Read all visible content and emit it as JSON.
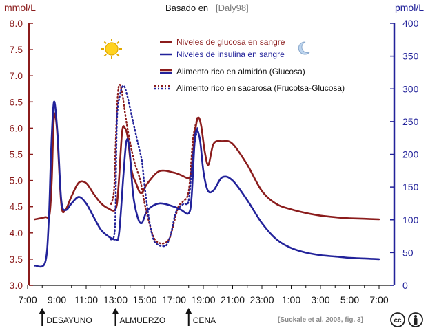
{
  "chart_data": {
    "type": "line",
    "title": "Basado en",
    "title_source": "[Daly98]",
    "y_left": {
      "unit": "mmol/L",
      "range": [
        3.0,
        8.0
      ],
      "ticks": [
        "3.0",
        "3.5",
        "4.0",
        "4.5",
        "5.0",
        "5.5",
        "6.0",
        "6.5",
        "7.0",
        "7.5",
        "8.0"
      ]
    },
    "y_right": {
      "unit": "pmol/L",
      "range": [
        0,
        400
      ],
      "ticks": [
        "0",
        "50",
        "100",
        "150",
        "200",
        "250",
        "300",
        "350",
        "400"
      ]
    },
    "x_ticks": [
      "7:00",
      "9:00",
      "11:00",
      "13:00",
      "15:00",
      "17:00",
      "19:00",
      "21:00",
      "23:00",
      "1:00",
      "3:00",
      "5:00",
      "7:00"
    ],
    "x_range": [
      7,
      31.5
    ],
    "legend": [
      {
        "label": "Niveles de glucosa en sangre",
        "color": "#8b1c1c",
        "style": "solid",
        "group": "measure"
      },
      {
        "label": "Niveles de insulina en sangre",
        "color": "#22229a",
        "style": "solid",
        "group": "measure"
      },
      {
        "label": "Alimento rico en almidón (Glucosa)",
        "style": "solid",
        "group": "food"
      },
      {
        "label": "Alimento rico en sacarosa (Frucotsa-Glucosa)",
        "style": "dotted",
        "group": "food"
      }
    ],
    "series": [
      {
        "measure": "glucose",
        "food": "starch",
        "axis": "left",
        "color": "#8b1c1c",
        "style": "solid",
        "x": [
          7.5,
          8.2,
          8.5,
          8.65,
          8.8,
          9.0,
          9.3,
          9.6,
          10,
          10.5,
          11,
          11.5,
          12,
          12.5,
          13,
          13.2,
          13.45,
          13.65,
          13.85,
          14.1,
          14.4,
          14.75,
          15.2,
          16,
          17,
          17.5,
          18,
          18.2,
          18.45,
          18.65,
          18.85,
          19.1,
          19.35,
          19.7,
          20.3,
          21,
          22,
          23,
          24,
          25,
          26,
          27,
          28,
          29,
          30,
          31
        ],
        "y": [
          4.26,
          4.3,
          4.35,
          5.0,
          6.2,
          6.0,
          4.55,
          4.45,
          4.7,
          4.96,
          4.95,
          4.75,
          4.57,
          4.47,
          4.45,
          4.85,
          5.92,
          6.0,
          5.8,
          5.2,
          4.95,
          4.76,
          4.95,
          5.18,
          5.15,
          5.1,
          5.05,
          5.2,
          5.95,
          6.2,
          6.05,
          5.55,
          5.3,
          5.7,
          5.75,
          5.7,
          5.3,
          4.8,
          4.55,
          4.45,
          4.38,
          4.33,
          4.3,
          4.28,
          4.27,
          4.26
        ]
      },
      {
        "measure": "insulin",
        "food": "starch",
        "axis": "right",
        "color": "#22229a",
        "style": "solid",
        "x": [
          7.5,
          8.2,
          8.45,
          8.6,
          8.8,
          9.05,
          9.3,
          9.6,
          10,
          10.5,
          11,
          11.5,
          12,
          12.5,
          13,
          13.25,
          13.55,
          13.75,
          13.95,
          14.2,
          14.5,
          14.8,
          15.2,
          16,
          17,
          17.5,
          18,
          18.2,
          18.45,
          18.75,
          19.0,
          19.3,
          19.7,
          20.3,
          21,
          22,
          23,
          24,
          25,
          26,
          27,
          28,
          29,
          30,
          31
        ],
        "y": [
          30,
          35,
          100,
          200,
          280,
          230,
          130,
          115,
          125,
          135,
          125,
          105,
          85,
          75,
          70,
          80,
          170,
          220,
          210,
          140,
          105,
          95,
          115,
          125,
          120,
          115,
          110,
          135,
          230,
          225,
          175,
          145,
          145,
          165,
          160,
          130,
          95,
          70,
          57,
          50,
          46,
          44,
          42,
          41,
          40
        ]
      },
      {
        "measure": "glucose",
        "food": "sucrose",
        "axis": "left",
        "color": "#8b1c1c",
        "style": "dotted",
        "x": [
          12.7,
          12.9,
          13.0,
          13.15,
          13.3,
          13.5,
          13.7,
          13.95,
          14.3,
          14.7,
          15.0,
          15.3,
          15.6,
          15.9,
          16.3,
          16.7,
          17.0,
          17.3,
          17.6,
          18.0,
          18.3,
          18.6
        ],
        "y": [
          4.55,
          4.8,
          5.6,
          6.6,
          6.83,
          6.6,
          6.2,
          5.8,
          5.35,
          5.0,
          4.55,
          4.2,
          3.92,
          3.82,
          3.8,
          3.9,
          4.2,
          4.5,
          4.6,
          4.8,
          5.8,
          6.2
        ]
      },
      {
        "measure": "insulin",
        "food": "sucrose",
        "axis": "right",
        "color": "#22229a",
        "style": "dotted",
        "x": [
          12.7,
          12.9,
          13.0,
          13.1,
          13.3,
          13.55,
          13.8,
          14.1,
          14.5,
          14.8,
          15.0,
          15.3,
          15.6,
          15.9,
          16.2,
          16.5,
          16.8,
          17.1,
          17.4,
          17.7,
          18.0,
          18.3,
          18.6
        ],
        "y": [
          70,
          75,
          110,
          250,
          290,
          305,
          290,
          260,
          220,
          190,
          150,
          100,
          70,
          62,
          60,
          62,
          80,
          110,
          120,
          125,
          130,
          200,
          240
        ]
      }
    ],
    "meals": [
      {
        "label": "DESAYUNO",
        "time": 8.0
      },
      {
        "label": "ALMUERZO",
        "time": 13.0
      },
      {
        "label": "CENA",
        "time": 18.0
      }
    ],
    "icons": [
      "sun-icon",
      "moon-icon"
    ],
    "citation": "[Suckale et al. 2008, fig. 3]",
    "license_icons": [
      "cc-icon",
      "by-icon"
    ],
    "grid": false
  }
}
